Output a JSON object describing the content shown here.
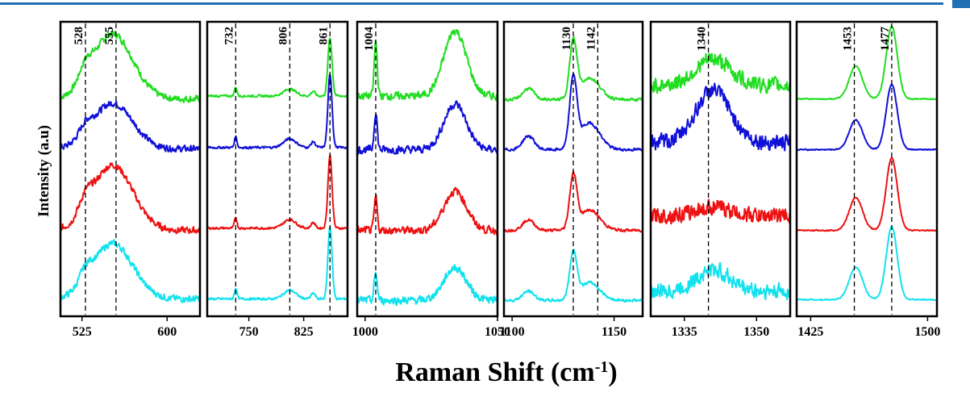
{
  "chart_data": {
    "type": "line",
    "ylabel": "Intensity (a.u)",
    "xlabel_main": "Raman Shift (cm",
    "xlabel_sup": "-1",
    "xlabel_end": ")",
    "series_colors": [
      "#22dd22",
      "#1010d8",
      "#ee1111",
      "#11e2ee"
    ],
    "panels": [
      {
        "xlim": [
          506,
          629
        ],
        "ticks": [
          {
            "value": 525,
            "label": "525"
          },
          {
            "value": 600,
            "label": "600"
          }
        ],
        "peaks": [
          {
            "value": 528,
            "label": "528"
          },
          {
            "value": 555,
            "label": "555"
          }
        ],
        "profile": [
          {
            "c": 552,
            "w": 25,
            "h": 0.9
          },
          {
            "c": 528,
            "w": 8,
            "h": 0.2
          }
        ],
        "noise": 0.12,
        "series": [
          {
            "base": 0.06,
            "scale": 1.0
          },
          {
            "base": 0.06,
            "scale": 0.7
          },
          {
            "base": 0.05,
            "scale": 1.0
          },
          {
            "base": 0.05,
            "scale": 0.85
          }
        ]
      },
      {
        "xlim": [
          693,
          885
        ],
        "ticks": [
          {
            "value": 750,
            "label": "750"
          },
          {
            "value": 825,
            "label": "825"
          }
        ],
        "peaks": [
          {
            "value": 732,
            "label": "732"
          },
          {
            "value": 806,
            "label": "806"
          },
          {
            "value": 861,
            "label": "861"
          }
        ],
        "profile": [
          {
            "c": 861,
            "w": 4,
            "h": 1.0
          },
          {
            "c": 732,
            "w": 2.5,
            "h": 0.15
          },
          {
            "c": 806,
            "w": 12,
            "h": 0.12
          },
          {
            "c": 838,
            "w": 4,
            "h": 0.08
          }
        ],
        "noise": 0.04,
        "series": [
          {
            "base": 0.1,
            "scale": 0.8
          },
          {
            "base": 0.08,
            "scale": 1.0
          },
          {
            "base": 0.08,
            "scale": 1.0
          },
          {
            "base": 0.05,
            "scale": 1.0
          }
        ]
      },
      {
        "xlim": [
          997,
          1050
        ],
        "ticks": [
          {
            "value": 1000,
            "label": "1000"
          },
          {
            "value": 1050,
            "label": "1050"
          }
        ],
        "peaks": [
          {
            "value": 1004,
            "label": "1004"
          }
        ],
        "profile": [
          {
            "c": 1034,
            "w": 6,
            "h": 0.9
          },
          {
            "c": 1004,
            "w": 0.8,
            "h": 0.75
          }
        ],
        "noise": 0.14,
        "series": [
          {
            "base": 0.1,
            "scale": 1.0
          },
          {
            "base": 0.05,
            "scale": 0.7
          },
          {
            "base": 0.05,
            "scale": 0.6
          },
          {
            "base": 0.03,
            "scale": 0.5
          }
        ]
      },
      {
        "xlim": [
          1096,
          1164
        ],
        "ticks": [
          {
            "value": 1100,
            "label": "1100"
          },
          {
            "value": 1150,
            "label": "1150"
          }
        ],
        "peaks": [
          {
            "value": 1130,
            "label": "1130"
          },
          {
            "value": 1142,
            "label": "1142"
          }
        ],
        "profile": [
          {
            "c": 1130,
            "w": 2.5,
            "h": 0.9
          },
          {
            "c": 1138,
            "w": 7,
            "h": 0.35
          },
          {
            "c": 1108,
            "w": 4,
            "h": 0.18
          }
        ],
        "noise": 0.05,
        "series": [
          {
            "base": 0.05,
            "scale": 0.85
          },
          {
            "base": 0.05,
            "scale": 1.05
          },
          {
            "base": 0.05,
            "scale": 0.8
          },
          {
            "base": 0.03,
            "scale": 0.7
          }
        ]
      },
      {
        "xlim": [
          1328,
          1357
        ],
        "ticks": [
          {
            "value": 1335,
            "label": "1335"
          },
          {
            "value": 1350,
            "label": "1350"
          }
        ],
        "peaks": [
          {
            "value": 1340,
            "label": "1340"
          }
        ],
        "profile": [
          {
            "c": 1341,
            "w": 5,
            "h": 0.6
          }
        ],
        "noise": 0.28,
        "series": [
          {
            "base": 0.25,
            "scale": 0.6
          },
          {
            "base": 0.15,
            "scale": 1.2
          },
          {
            "base": 0.25,
            "scale": 0.2
          },
          {
            "base": 0.15,
            "scale": 0.5
          }
        ]
      },
      {
        "xlim": [
          1416,
          1506
        ],
        "ticks": [
          {
            "value": 1425,
            "label": "1425"
          },
          {
            "value": 1500,
            "label": "1500"
          }
        ],
        "peaks": [
          {
            "value": 1453,
            "label": "1453"
          },
          {
            "value": 1477,
            "label": "1477"
          }
        ],
        "profile": [
          {
            "c": 1477,
            "w": 5,
            "h": 1.0
          },
          {
            "c": 1454,
            "w": 6,
            "h": 0.45
          }
        ],
        "noise": 0.02,
        "series": [
          {
            "base": 0.06,
            "scale": 1.0
          },
          {
            "base": 0.05,
            "scale": 0.9
          },
          {
            "base": 0.05,
            "scale": 1.0
          },
          {
            "base": 0.04,
            "scale": 1.0
          }
        ]
      }
    ]
  }
}
